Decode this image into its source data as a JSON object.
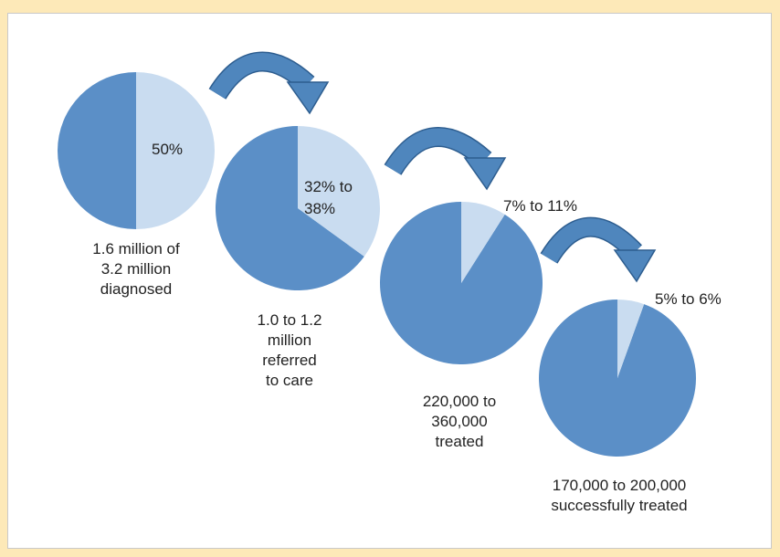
{
  "chart_data": {
    "type": "pie",
    "colors": {
      "main": "#5b8fc7",
      "highlight": "#c9dcf0",
      "arrow": "#4f86bd",
      "arrow_edge": "#2d5d8f"
    },
    "stages": [
      {
        "highlight_percent": 50,
        "percent_label": "50%",
        "caption": [
          "1.6 million of",
          "3.2 million",
          "diagnosed"
        ]
      },
      {
        "highlight_percent": 35,
        "percent_label": "32% to\n38%",
        "caption": [
          "1.0 to 1.2",
          "million",
          "referred",
          "to care"
        ]
      },
      {
        "highlight_percent": 9,
        "percent_label": "7% to 11%",
        "caption": [
          "220,000 to",
          "360,000",
          "treated"
        ]
      },
      {
        "highlight_percent": 5.5,
        "percent_label": "5% to 6%",
        "caption": [
          "170,000 to 200,000",
          "successfully treated"
        ]
      }
    ]
  }
}
